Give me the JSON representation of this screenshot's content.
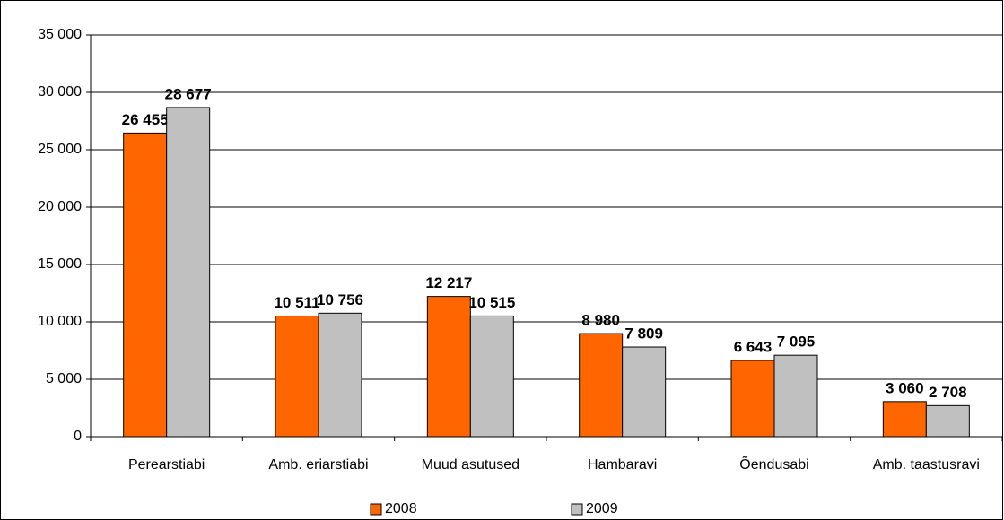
{
  "chart_data": {
    "type": "bar",
    "categories": [
      "Perearstiabi",
      "Amb. eriarstiabi",
      "Muud asutused",
      "Hambaravi",
      "Õendusabi",
      "Amb. taastusravi"
    ],
    "series": [
      {
        "name": "2008",
        "color": "#ff6600",
        "values": [
          26455,
          10511,
          12217,
          8980,
          6643,
          3060
        ],
        "value_labels": [
          "26 455",
          "10 511",
          "12 217",
          "8 980",
          "6 643",
          "3 060"
        ]
      },
      {
        "name": "2009",
        "color": "#c0c0c0",
        "values": [
          28677,
          10756,
          10515,
          7809,
          7095,
          2708
        ],
        "value_labels": [
          "28 677",
          "10 756",
          "10 515",
          "7 809",
          "7 095",
          "2 708"
        ]
      }
    ],
    "ylim": [
      0,
      35000
    ],
    "yticks": [
      0,
      {
        "value": 5000,
        "label": "5 000"
      },
      {
        "value": 10000,
        "label": "10 000"
      },
      {
        "value": 15000,
        "label": "15 000"
      },
      {
        "value": 20000,
        "label": "20 000"
      },
      {
        "value": 25000,
        "label": "25 000"
      },
      {
        "value": 30000,
        "label": "30 000"
      },
      {
        "value": 35000,
        "label": "35 000"
      }
    ],
    "grid": true,
    "legend": "bottom"
  }
}
